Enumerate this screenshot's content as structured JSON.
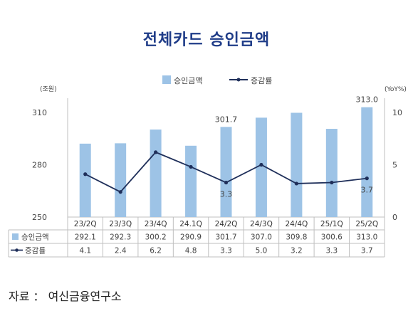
{
  "title": "전체카드 승인금액",
  "source": "자료 ： 여신금융연구소",
  "colors": {
    "bar": "#9dc3e6",
    "line": "#1f2f5a",
    "title": "#1f3c88"
  },
  "chart_data": {
    "type": "bar",
    "categories": [
      "23/2Q",
      "23/3Q",
      "23/4Q",
      "24.1Q",
      "24/2Q",
      "24/3Q",
      "24/4Q",
      "25/1Q",
      "25/2Q"
    ],
    "series": [
      {
        "name": "승인금액",
        "type": "bar",
        "axis": "left",
        "values": [
          292.1,
          292.3,
          300.2,
          290.9,
          301.7,
          307.0,
          309.8,
          300.6,
          313.0
        ],
        "display": [
          "292.1",
          "292.3",
          "300.2",
          "290.9",
          "301.7",
          "307.0",
          "309.8",
          "300.6",
          "313.0"
        ]
      },
      {
        "name": "증감률",
        "type": "line",
        "axis": "right",
        "values": [
          4.1,
          2.4,
          6.2,
          4.8,
          3.3,
          5.0,
          3.2,
          3.3,
          3.7
        ],
        "display": [
          "4.1",
          "2.4",
          "6.2",
          "4.8",
          "3.3",
          "5.0",
          "3.2",
          "3.3",
          "3.7"
        ]
      }
    ],
    "left_axis": {
      "unit": "(조원)",
      "ylim": [
        250,
        310
      ],
      "ticks": [
        "250",
        "280",
        "310"
      ]
    },
    "right_axis": {
      "unit": "(YoY%)",
      "ylim": [
        0,
        10
      ],
      "ticks": [
        "0",
        "5",
        "10"
      ]
    },
    "annotations": [
      {
        "series": 0,
        "index": 4,
        "text": "301.7"
      },
      {
        "series": 0,
        "index": 8,
        "text": "313.0"
      },
      {
        "series": 1,
        "index": 4,
        "text": "3.3"
      },
      {
        "series": 1,
        "index": 8,
        "text": "3.7"
      }
    ],
    "legend_position": "top",
    "grid": false,
    "data_table": true
  }
}
